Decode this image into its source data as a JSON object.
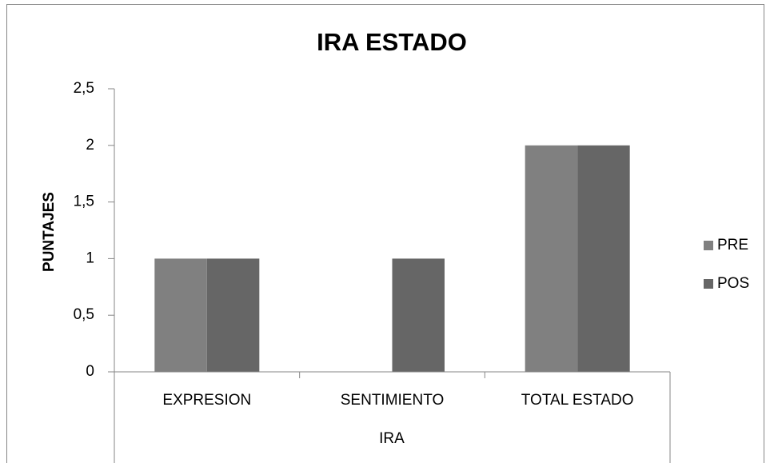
{
  "chart_data": {
    "type": "bar",
    "title": "IRA ESTADO",
    "x_label": "IRA",
    "y_label": "PUNTAJES",
    "categories": [
      "EXPRESION",
      "SENTIMIENTO",
      "TOTAL ESTADO"
    ],
    "series": [
      {
        "name": "PRE",
        "color": "#808080",
        "values": [
          1,
          0,
          2
        ]
      },
      {
        "name": "POS",
        "color": "#666666",
        "values": [
          1,
          1,
          2
        ]
      }
    ],
    "ylim": [
      0,
      2.5
    ],
    "yticks": [
      0,
      {
        "value": 0.5,
        "label": "0,5"
      },
      1,
      {
        "value": 1.5,
        "label": "1,5"
      },
      2,
      {
        "value": 2.5,
        "label": "2,5"
      }
    ],
    "legend": "right"
  }
}
